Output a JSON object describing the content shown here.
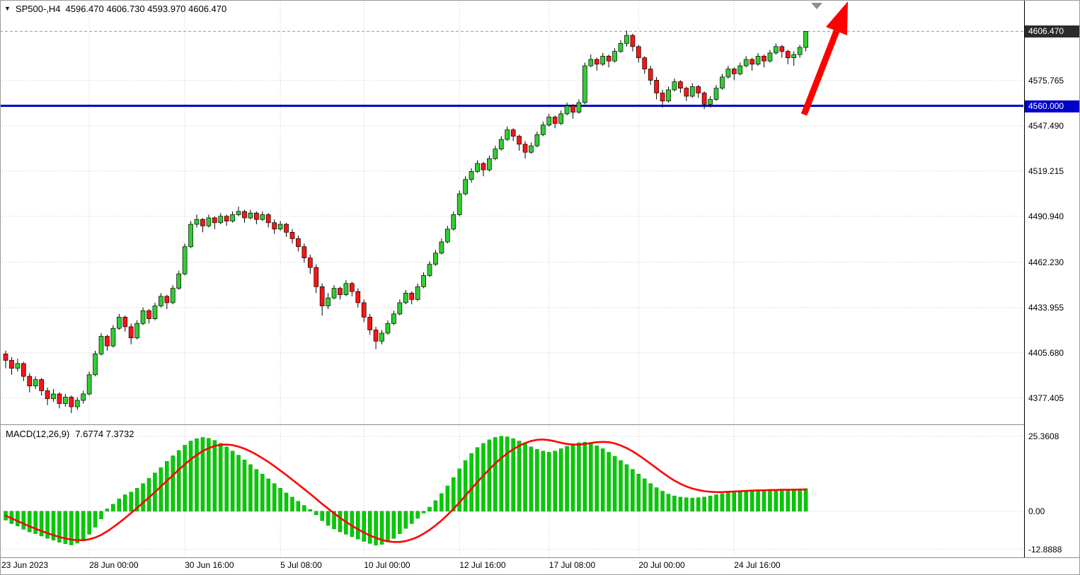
{
  "header": {
    "symbol_label": "SP500-,H4",
    "ohlc": "4596.470 4606.730 4593.970 4606.470",
    "dropdown_glyph": "▼"
  },
  "indicator": {
    "label": "MACD(12,26,9)",
    "values": "7.6774 7.3732"
  },
  "price_axis": {
    "ticks": [
      "4575.765",
      "4547.490",
      "4519.215",
      "4490.940",
      "4462.230",
      "4433.955",
      "4405.680",
      "4377.405"
    ],
    "current_price_badge": "4606.470",
    "hline_badge": "4560.000"
  },
  "macd_axis": {
    "ticks": [
      "25.3608",
      "0.00",
      "-12.8888"
    ]
  },
  "time_axis": {
    "labels": [
      {
        "text": "23 Jun 2023",
        "index": 0
      },
      {
        "text": "28 Jun 00:00",
        "index": 14
      },
      {
        "text": "30 Jun 16:00",
        "index": 30
      },
      {
        "text": "5 Jul 08:00",
        "index": 46
      },
      {
        "text": "10 Jul 00:00",
        "index": 60
      },
      {
        "text": "12 Jul 16:00",
        "index": 76
      },
      {
        "text": "17 Jul 08:00",
        "index": 91
      },
      {
        "text": "20 Jul 00:00",
        "index": 106
      },
      {
        "text": "24 Jul 16:00",
        "index": 122
      }
    ]
  },
  "colors": {
    "bull": "#32CD32",
    "bear": "#FF1414",
    "candle_outline": "#000000",
    "wick": "#000000",
    "macd_bar": "#00CC00",
    "macd_bar_outline": "#009900",
    "signal_line": "#FF0000",
    "hline": "#0000C8",
    "bid_line": "#999999",
    "grid": "#C9C9C9",
    "badge_current_bg": "#2B2B2B",
    "badge_hline_bg": "#0000C8",
    "arrow": "#FF0000"
  },
  "chart_data": [
    {
      "type": "candlestick",
      "title": "SP500-,H4",
      "timeframe": "H4",
      "ylim": [
        4361.0,
        4626.1
      ],
      "horizontal_line": 4560.0,
      "current_price": 4606.47,
      "last_ohlc": {
        "open": 4596.47,
        "high": 4606.73,
        "low": 4593.97,
        "close": 4606.47
      },
      "candles": [
        [
          4405,
          4407,
          4396,
          4401
        ],
        [
          4401,
          4403,
          4392,
          4396
        ],
        [
          4396,
          4402,
          4394,
          4399
        ],
        [
          4399,
          4400,
          4388,
          4391
        ],
        [
          4391,
          4393,
          4381,
          4385
        ],
        [
          4385,
          4391,
          4383,
          4389
        ],
        [
          4389,
          4390,
          4379,
          4382
        ],
        [
          4382,
          4384,
          4373,
          4377
        ],
        [
          4377,
          4383,
          4375,
          4380
        ],
        [
          4380,
          4381,
          4371,
          4374
        ],
        [
          4374,
          4380,
          4372,
          4378
        ],
        [
          4378,
          4379,
          4368,
          4372
        ],
        [
          4372,
          4378,
          4370,
          4376
        ],
        [
          4376,
          4382,
          4374,
          4380
        ],
        [
          4380,
          4394,
          4379,
          4392
        ],
        [
          4392,
          4407,
          4391,
          4405
        ],
        [
          4405,
          4418,
          4404,
          4416
        ],
        [
          4416,
          4417,
          4407,
          4410
        ],
        [
          4410,
          4423,
          4409,
          4421
        ],
        [
          4421,
          4430,
          4420,
          4428
        ],
        [
          4428,
          4429,
          4419,
          4422
        ],
        [
          4422,
          4424,
          4411,
          4415
        ],
        [
          4415,
          4426,
          4414,
          4424
        ],
        [
          4424,
          4434,
          4423,
          4432
        ],
        [
          4432,
          4433,
          4424,
          4427
        ],
        [
          4427,
          4437,
          4426,
          4435
        ],
        [
          4435,
          4443,
          4434,
          4441
        ],
        [
          4441,
          4442,
          4433,
          4437
        ],
        [
          4437,
          4448,
          4436,
          4446
        ],
        [
          4446,
          4457,
          4445,
          4455
        ],
        [
          4455,
          4474,
          4454,
          4472
        ],
        [
          4472,
          4488,
          4471,
          4486
        ],
        [
          4486,
          4492,
          4484,
          4489
        ],
        [
          4489,
          4490,
          4481,
          4485
        ],
        [
          4485,
          4492,
          4484,
          4490
        ],
        [
          4490,
          4491,
          4483,
          4487
        ],
        [
          4487,
          4493,
          4486,
          4491
        ],
        [
          4491,
          4492,
          4485,
          4488
        ],
        [
          4488,
          4494,
          4487,
          4492
        ],
        [
          4492,
          4497,
          4491,
          4494
        ],
        [
          4494,
          4495,
          4487,
          4490
        ],
        [
          4490,
          4495,
          4489,
          4493
        ],
        [
          4493,
          4494,
          4486,
          4489
        ],
        [
          4489,
          4494,
          4488,
          4492
        ],
        [
          4492,
          4493,
          4484,
          4487
        ],
        [
          4487,
          4489,
          4480,
          4483
        ],
        [
          4483,
          4488,
          4482,
          4486
        ],
        [
          4486,
          4487,
          4478,
          4481
        ],
        [
          4481,
          4483,
          4474,
          4477
        ],
        [
          4477,
          4479,
          4469,
          4472
        ],
        [
          4472,
          4474,
          4462,
          4465
        ],
        [
          4465,
          4467,
          4455,
          4459
        ],
        [
          4459,
          4461,
          4443,
          4447
        ],
        [
          4447,
          4449,
          4429,
          4435
        ],
        [
          4435,
          4443,
          4433,
          4440
        ],
        [
          4440,
          4448,
          4439,
          4446
        ],
        [
          4446,
          4447,
          4439,
          4442
        ],
        [
          4442,
          4451,
          4441,
          4449
        ],
        [
          4449,
          4450,
          4441,
          4444
        ],
        [
          4444,
          4446,
          4434,
          4437
        ],
        [
          4437,
          4439,
          4425,
          4428
        ],
        [
          4428,
          4430,
          4417,
          4420
        ],
        [
          4420,
          4422,
          4408,
          4413
        ],
        [
          4413,
          4420,
          4411,
          4418
        ],
        [
          4418,
          4426,
          4417,
          4424
        ],
        [
          4424,
          4432,
          4423,
          4430
        ],
        [
          4430,
          4439,
          4429,
          4437
        ],
        [
          4437,
          4445,
          4436,
          4443
        ],
        [
          4443,
          4444,
          4436,
          4439
        ],
        [
          4439,
          4449,
          4438,
          4447
        ],
        [
          4447,
          4456,
          4446,
          4454
        ],
        [
          4454,
          4463,
          4453,
          4461
        ],
        [
          4461,
          4470,
          4460,
          4468
        ],
        [
          4468,
          4477,
          4467,
          4475
        ],
        [
          4475,
          4485,
          4474,
          4483
        ],
        [
          4483,
          4494,
          4482,
          4492
        ],
        [
          4492,
          4507,
          4491,
          4505
        ],
        [
          4505,
          4516,
          4504,
          4514
        ],
        [
          4514,
          4521,
          4512,
          4519
        ],
        [
          4519,
          4526,
          4518,
          4524
        ],
        [
          4524,
          4525,
          4516,
          4520
        ],
        [
          4520,
          4529,
          4519,
          4527
        ],
        [
          4527,
          4535,
          4526,
          4533
        ],
        [
          4533,
          4541,
          4532,
          4539
        ],
        [
          4539,
          4547,
          4538,
          4545
        ],
        [
          4545,
          4546,
          4538,
          4541
        ],
        [
          4541,
          4542,
          4532,
          4536
        ],
        [
          4536,
          4538,
          4527,
          4531
        ],
        [
          4531,
          4537,
          4530,
          4535
        ],
        [
          4535,
          4544,
          4534,
          4542
        ],
        [
          4542,
          4550,
          4541,
          4548
        ],
        [
          4548,
          4555,
          4547,
          4553
        ],
        [
          4553,
          4554,
          4546,
          4549
        ],
        [
          4549,
          4557,
          4548,
          4555
        ],
        [
          4555,
          4562,
          4554,
          4560
        ],
        [
          4560,
          4561,
          4552,
          4556
        ],
        [
          4556,
          4564,
          4555,
          4562
        ],
        [
          4562,
          4587,
          4561,
          4585
        ],
        [
          4585,
          4592,
          4584,
          4589
        ],
        [
          4589,
          4590,
          4582,
          4586
        ],
        [
          4586,
          4593,
          4585,
          4591
        ],
        [
          4591,
          4592,
          4584,
          4588
        ],
        [
          4588,
          4596,
          4587,
          4594
        ],
        [
          4594,
          4601,
          4593,
          4599
        ],
        [
          4599,
          4607,
          4597,
          4604
        ],
        [
          4604,
          4605,
          4594,
          4597
        ],
        [
          4597,
          4598,
          4587,
          4590
        ],
        [
          4590,
          4591,
          4580,
          4583
        ],
        [
          4583,
          4585,
          4573,
          4576
        ],
        [
          4576,
          4578,
          4564,
          4568
        ],
        [
          4568,
          4570,
          4559,
          4563
        ],
        [
          4563,
          4572,
          4562,
          4570
        ],
        [
          4570,
          4577,
          4569,
          4575
        ],
        [
          4575,
          4576,
          4568,
          4571
        ],
        [
          4571,
          4572,
          4563,
          4566
        ],
        [
          4566,
          4574,
          4565,
          4572
        ],
        [
          4572,
          4573,
          4565,
          4568
        ],
        [
          4568,
          4569,
          4558,
          4561
        ],
        [
          4561,
          4566,
          4559,
          4564
        ],
        [
          4564,
          4573,
          4563,
          4571
        ],
        [
          4571,
          4580,
          4570,
          4578
        ],
        [
          4578,
          4585,
          4577,
          4583
        ],
        [
          4583,
          4584,
          4576,
          4580
        ],
        [
          4580,
          4587,
          4579,
          4585
        ],
        [
          4585,
          4591,
          4584,
          4589
        ],
        [
          4589,
          4590,
          4582,
          4586
        ],
        [
          4586,
          4593,
          4585,
          4591
        ],
        [
          4591,
          4592,
          4584,
          4588
        ],
        [
          4588,
          4595,
          4587,
          4593
        ],
        [
          4593,
          4599,
          4592,
          4597
        ],
        [
          4597,
          4598,
          4590,
          4594
        ],
        [
          4594,
          4595,
          4586,
          4590
        ],
        [
          4590,
          4594,
          4585,
          4592
        ],
        [
          4592,
          4598,
          4590,
          4596.5
        ],
        [
          4596.47,
          4606.73,
          4593.97,
          4606.47
        ]
      ]
    },
    {
      "type": "macd",
      "params": "12,26,9",
      "macd_value": 7.6774,
      "signal_value": 7.3732,
      "ylim": [
        -15.6,
        29.2
      ],
      "yticks": [
        25.3608,
        0.0,
        -12.8888
      ],
      "histogram": [
        -3.0,
        -4.2,
        -5.0,
        -6.1,
        -7.0,
        -7.6,
        -8.4,
        -9.2,
        -9.8,
        -10.5,
        -11.0,
        -11.4,
        -10.8,
        -9.6,
        -7.8,
        -5.4,
        -2.6,
        0.8,
        2.4,
        4.2,
        5.6,
        6.5,
        7.8,
        9.4,
        11.2,
        13.0,
        14.8,
        16.9,
        18.8,
        20.6,
        22.4,
        23.8,
        24.6,
        25.0,
        24.7,
        24.0,
        23.0,
        21.8,
        20.4,
        19.0,
        17.4,
        15.8,
        14.2,
        12.6,
        11.0,
        9.4,
        7.8,
        6.2,
        4.8,
        3.4,
        2.0,
        0.6,
        -1.2,
        -3.2,
        -4.8,
        -6.0,
        -7.0,
        -7.8,
        -8.6,
        -9.4,
        -10.2,
        -10.9,
        -11.5,
        -11.2,
        -10.4,
        -9.2,
        -7.6,
        -5.8,
        -4.2,
        -2.4,
        -0.6,
        1.4,
        3.6,
        6.0,
        8.6,
        11.4,
        14.4,
        17.2,
        19.6,
        21.6,
        23.0,
        24.2,
        25.0,
        25.4,
        25.2,
        24.6,
        23.8,
        22.8,
        21.8,
        21.0,
        20.4,
        20.0,
        20.4,
        21.2,
        22.0,
        22.8,
        23.2,
        23.4,
        23.0,
        22.2,
        21.2,
        20.0,
        18.6,
        17.2,
        15.8,
        14.2,
        12.6,
        11.0,
        9.4,
        8.0,
        6.8,
        5.8,
        5.2,
        4.8,
        4.6,
        4.5,
        4.6,
        4.8,
        5.2,
        5.6,
        6.0,
        6.4,
        6.6,
        6.8,
        7.0,
        7.1,
        7.2,
        7.3,
        7.4,
        7.4,
        7.5,
        7.5,
        7.6,
        7.6,
        7.6774
      ],
      "signal": [
        -1.5,
        -2.4,
        -3.3,
        -4.2,
        -5.1,
        -5.9,
        -6.7,
        -7.4,
        -8.1,
        -8.7,
        -9.2,
        -9.6,
        -9.8,
        -9.8,
        -9.5,
        -8.9,
        -8.0,
        -6.8,
        -5.4,
        -3.9,
        -2.3,
        -0.6,
        1.1,
        2.9,
        4.7,
        6.5,
        8.4,
        10.3,
        12.2,
        14.1,
        15.9,
        17.6,
        19.1,
        20.4,
        21.4,
        22.1,
        22.5,
        22.6,
        22.4,
        21.9,
        21.2,
        20.3,
        19.2,
        18.0,
        16.7,
        15.3,
        13.8,
        12.3,
        10.7,
        9.1,
        7.5,
        5.9,
        4.2,
        2.5,
        0.9,
        -0.7,
        -2.2,
        -3.6,
        -4.9,
        -6.1,
        -7.2,
        -8.2,
        -9.0,
        -9.7,
        -10.2,
        -10.4,
        -10.4,
        -10.1,
        -9.5,
        -8.7,
        -7.6,
        -6.3,
        -4.8,
        -3.1,
        -1.2,
        0.8,
        3.0,
        5.3,
        7.6,
        9.9,
        12.1,
        14.2,
        16.2,
        18.0,
        19.6,
        21.0,
        22.2,
        23.1,
        23.8,
        24.2,
        24.3,
        24.1,
        23.7,
        23.2,
        22.8,
        22.6,
        22.6,
        22.8,
        23.1,
        23.4,
        23.5,
        23.4,
        23.0,
        22.3,
        21.4,
        20.3,
        19.0,
        17.6,
        16.1,
        14.6,
        13.1,
        11.7,
        10.4,
        9.3,
        8.4,
        7.7,
        7.2,
        6.8,
        6.6,
        6.5,
        6.5,
        6.6,
        6.7,
        6.8,
        6.9,
        7.0,
        7.1,
        7.1,
        7.2,
        7.2,
        7.3,
        7.3,
        7.3,
        7.35,
        7.3732
      ]
    }
  ]
}
